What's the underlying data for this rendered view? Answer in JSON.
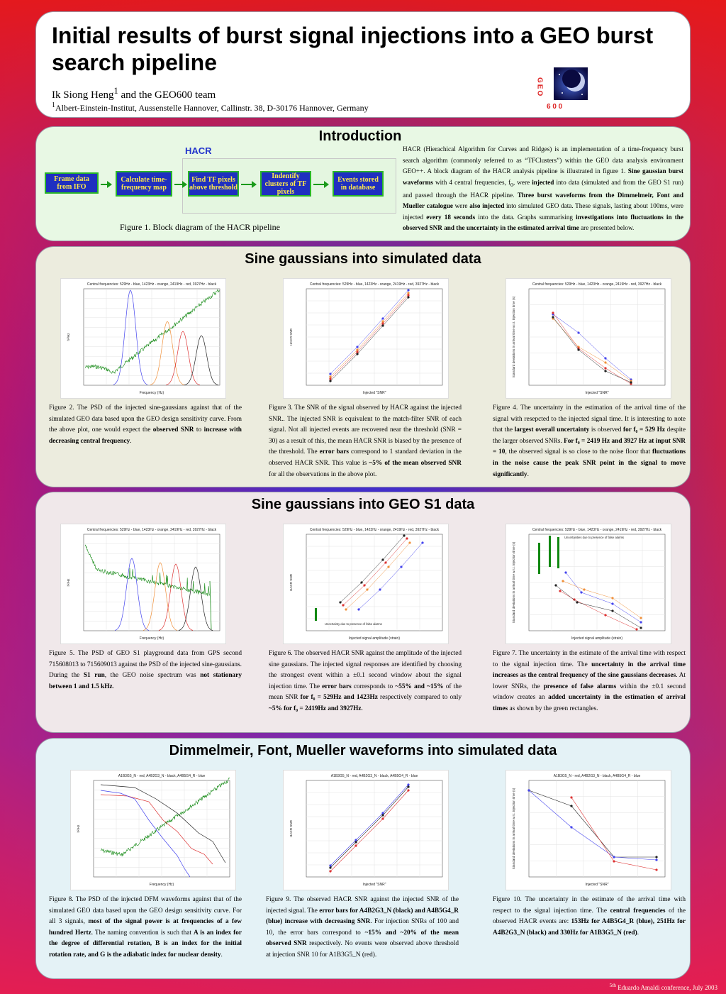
{
  "title": "Initial results of burst signal injections into a GEO burst search pipeline",
  "authors": "Ik Siong Heng",
  "authors_sup": "1",
  "authors_rest": " and the GEO600 team",
  "affiliation_sup": "1",
  "affiliation": "Albert-Einstein-Institut, Aussenstelle Hannover, Callinstr. 38, D-30176 Hannover, Germany",
  "logo": {
    "letters": "GEO",
    "number": "6 0 0"
  },
  "intro": {
    "heading": "Introduction",
    "hacr_label": "HACR",
    "blocks": [
      "Frame data from IFO",
      "Calculate time-frequency map",
      "Find TF pixels above threshold",
      "Indentify clusters of TF pixels",
      "Events stored in database"
    ],
    "figure_caption": "Figure 1. Block diagram of the HACR pipeline",
    "text_parts": [
      "HACR (Hierachical Algorithm for Curves and Ridges) is an implementation of a time-frequency burst search algorithm (commonly referred to as “TFClusters”) within the GEO data analysis environment GEO++. A block diagram of the HACR analysis pipeline is illustrated in figure 1. ",
      "Sine gaussian burst waveforms",
      " with 4 central frequencies, f",
      "0",
      ", were ",
      "injected",
      " into data (simulated and from the GEO S1 run)  and passed through the HACR pipeline. ",
      "Three burst waveforms from the Dimmelmeir, Font and Mueller catalogue",
      " were ",
      "also injected",
      " into simulated GEO data. These signals, lasting about 100ms, were injected ",
      "every 18 seconds",
      " into the data. Graphs summarising ",
      "investigations into fluctuations in the observed SNR and the uncertainty in the estimated arrival time",
      " are presented below."
    ]
  },
  "sections": {
    "sg_sim": "Sine gaussians into simulated data",
    "sg_geo": "Sine gaussians into GEO S1 data",
    "dfm": "Dimmelmeir, Font, Mueller waveforms into simulated data"
  },
  "plot_titles": {
    "sg": "Central frequencies: 529Hz - blue, 1423Hz - orange, 2419Hz - red, 3927Hz - black",
    "dfm": "A1B3G5_N - red, A4B2G3_N - black, A4B5G4_R - blue"
  },
  "plot_labels": {
    "frequency": "Frequency (Hz)",
    "psd": "h²/Hz",
    "hacr_snr": "HACR SNR",
    "injected_snr": "Injected \"SNR\"",
    "injected_amp": "Injected signal amplitude (strain)",
    "std_dev": "Standard deviations in arrival time w.r.t. injection time (s)",
    "false_alarm_snr": "Uncertainty due to presence of false alarms",
    "false_alarm_time": "Uncertainties due to presence of false alarms"
  },
  "captions": {
    "fig2": [
      [
        "Figure 2. The PSD of the injected sine-gaussians against that of the simulated GEO data based upon the GEO design sensitivity curve. From the above plot, one would expect the ",
        false
      ],
      [
        "observed SNR",
        true
      ],
      [
        " to ",
        false
      ],
      [
        "increase with decreasing central frequency",
        true
      ],
      [
        ".",
        false
      ]
    ],
    "fig3": [
      [
        "Figure 3. The SNR of the signal observed by HACR against the injected SNR.. The injected SNR is equivalent to the match-filter SNR  of each signal. Not all injected events are recovered near the threshold (SNR = 30) as a result of this, the mean HACR SNR is biased by the presence of the threshold. The ",
        false
      ],
      [
        "error bars",
        true
      ],
      [
        " correspond to 1 standard deviation in the observed HACR SNR. This value is ",
        false
      ],
      [
        "~5% of the mean observed SNR",
        true
      ],
      [
        " for all the observations in the above plot.",
        false
      ]
    ],
    "fig4": [
      [
        "Figure 4. The uncertainty in the estimation of the arrival time of the signal with resepcted to the injected signal time. It is interesting to note that the ",
        false
      ],
      [
        "largest overall uncertainty",
        true
      ],
      [
        " is observed ",
        false
      ],
      [
        "for f₀ = 529 Hz",
        true
      ],
      [
        " despite the larger observed SNRs. ",
        false
      ],
      [
        "For f₀ = 2419 Hz and 3927 Hz at input SNR = 10",
        true
      ],
      [
        ", the observed signal is so close to the noise floor that ",
        false
      ],
      [
        "fluctuations in the noise cause the peak SNR point in the signal to move significantly",
        true
      ],
      [
        ".",
        false
      ]
    ],
    "fig5": [
      [
        "Figure 5. The PSD of  GEO S1 playground data from GPS second 715608013 to 715609013 against the PSD of the injected sine-gaussians. During the ",
        false
      ],
      [
        "S1 run",
        true
      ],
      [
        ", the GEO noise spectrum was ",
        false
      ],
      [
        "not stationary between 1 and 1.5 kHz",
        true
      ],
      [
        ".",
        false
      ]
    ],
    "fig6": [
      [
        "Figure 6. The observed HACR SNR against the amplitude of the injected sine gaussians. The injected signal responses are identified by choosing the strongest event within a ±0.1 second window about the signal injection time. The ",
        false
      ],
      [
        "error bars",
        true
      ],
      [
        " corresponds to ",
        false
      ],
      [
        "~55% and ~15%",
        true
      ],
      [
        " of the mean SNR ",
        false
      ],
      [
        "for f₀ = 529Hz and 1423Hz",
        true
      ],
      [
        " respectively compared to only ",
        false
      ],
      [
        "~5% for f₀ = 2419Hz and 3927Hz",
        true
      ],
      [
        ".",
        false
      ]
    ],
    "fig7": [
      [
        "Figure 7. The uncertainty in the estimate of the arrival time with respect to the signal injection time. The ",
        false
      ],
      [
        "uncertainty in the arrival time increases as the central frequency of the sine gaussians decreases",
        true
      ],
      [
        ". At lower SNRs, the ",
        false
      ],
      [
        "presence of false alarms",
        true
      ],
      [
        " within the ±0.1 second window creates an ",
        false
      ],
      [
        "added uncertainty in the estimation of arrival times",
        true
      ],
      [
        " as shown by the green rectangles.",
        false
      ]
    ],
    "fig8": [
      [
        "Figure 8. The PSD of the injected DFM waveforms against that of the simulated GEO data based upon the GEO design sensitivity curve. For all 3 signals, ",
        false
      ],
      [
        "most of the signal power is at frequencies of a few hundred Hertz",
        true
      ],
      [
        ". The naming convention is such that ",
        false
      ],
      [
        "A is an index for the degree of differential rotation, B is an index for the initial rotation rate, and G is the adiabatic index for nuclear density",
        true
      ],
      [
        ".",
        false
      ]
    ],
    "fig9": [
      [
        "Figure 9. The observed HACR SNR against the injected SNR of the injected signal. The ",
        false
      ],
      [
        "error bars for A4B2G3_N (black) and A4B5G4_R (blue) increase with decreasing SNR",
        true
      ],
      [
        ". For injection SNRs of 100 and 10, the error bars correspond to ",
        false
      ],
      [
        "~15% and ~20% of the mean observed SNR",
        true
      ],
      [
        " respectively. No events were observed above threshold at injection SNR 10 for A1B3G5_N (red).",
        false
      ]
    ],
    "fig10": [
      [
        "Figure 10. The uncertainty in the estimate of the arrival time with respect to the signal injection time. The ",
        false
      ],
      [
        "central frequencies",
        true
      ],
      [
        " of the observed HACR events are: ",
        false
      ],
      [
        "153Hz for A4B5G4_R (blue), 251Hz for A4B2G3_N (black) and 330Hz for A1B3G5_N (red)",
        true
      ],
      [
        ".",
        false
      ]
    ]
  },
  "footer": {
    "sup": "5th",
    "text": " Eduardo Amaldi conference, July 2003"
  },
  "colors": {
    "blue": "#4444ee",
    "orange": "#f0903a",
    "red": "#dd3333",
    "black": "#222222",
    "green": "#118811"
  }
}
